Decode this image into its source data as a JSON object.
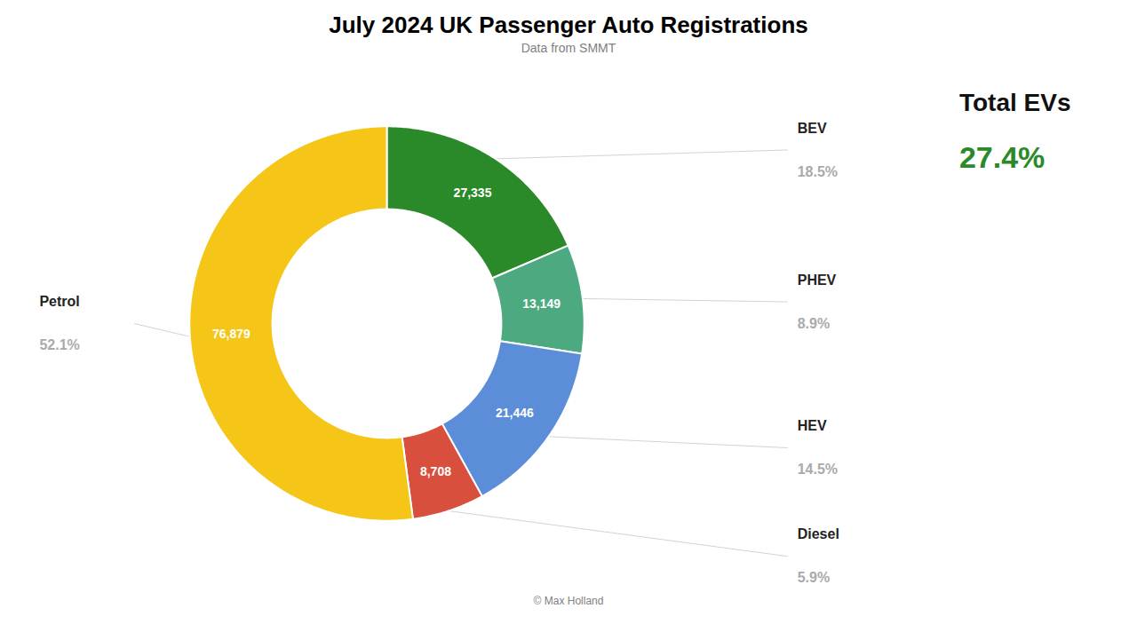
{
  "chart_data": {
    "type": "pie",
    "title": "July 2024 UK Passenger Auto Registrations",
    "subtitle": "Data from SMMT",
    "caption": "© Max Holland",
    "categories": [
      "BEV",
      "PHEV",
      "HEV",
      "Diesel",
      "Petrol"
    ],
    "values": [
      27335,
      13149,
      21446,
      8708,
      76879
    ],
    "value_labels": [
      "27,335",
      "13,149",
      "21,446",
      "8,708",
      "76,879"
    ],
    "data_labels": true,
    "colors": [
      "#2a8a2a",
      "#4daa80",
      "#5b8dd9",
      "#d94f3d",
      "#f5c518"
    ],
    "shares": [
      18.5,
      8.9,
      14.5,
      5.9,
      52.1
    ],
    "share_labels": [
      "18.5%",
      "8.9%",
      "14.5%",
      "5.9%",
      "52.1%"
    ],
    "annotations": [
      {
        "text": "Total EVs"
      },
      {
        "text": "27.4%",
        "value": 27.4,
        "color": "#2a8a2a"
      }
    ]
  }
}
